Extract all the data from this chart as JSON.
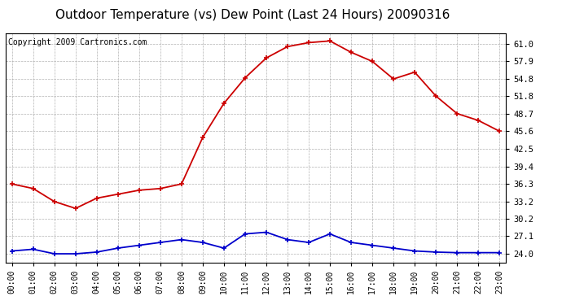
{
  "title": "Outdoor Temperature (vs) Dew Point (Last 24 Hours) 20090316",
  "copyright": "Copyright 2009 Cartronics.com",
  "hours": [
    "00:00",
    "01:00",
    "02:00",
    "03:00",
    "04:00",
    "05:00",
    "06:00",
    "07:00",
    "08:00",
    "09:00",
    "10:00",
    "11:00",
    "12:00",
    "13:00",
    "14:00",
    "15:00",
    "16:00",
    "17:00",
    "18:00",
    "19:00",
    "20:00",
    "21:00",
    "22:00",
    "23:00"
  ],
  "temp": [
    36.3,
    35.5,
    33.2,
    32.0,
    33.8,
    34.5,
    35.2,
    35.5,
    36.3,
    44.5,
    50.5,
    55.0,
    58.5,
    60.5,
    61.2,
    61.5,
    59.5,
    57.9,
    54.8,
    56.0,
    51.8,
    48.7,
    47.5,
    45.6
  ],
  "dew": [
    24.5,
    24.8,
    24.0,
    24.0,
    24.3,
    25.0,
    25.5,
    26.0,
    26.5,
    26.0,
    25.0,
    27.5,
    27.8,
    26.5,
    26.0,
    27.5,
    26.0,
    25.5,
    25.0,
    24.5,
    24.3,
    24.2,
    24.2,
    24.2
  ],
  "temp_color": "#cc0000",
  "dew_color": "#0000cc",
  "bg_color": "#ffffff",
  "grid_color": "#aaaaaa",
  "yticks": [
    24.0,
    27.1,
    30.2,
    33.2,
    36.3,
    39.4,
    42.5,
    45.6,
    48.7,
    51.8,
    54.8,
    57.9,
    61.0
  ],
  "ylim": [
    22.5,
    62.8
  ],
  "xlim": [
    -0.3,
    23.3
  ],
  "marker": "+",
  "markersize": 5,
  "markeredgewidth": 1.2,
  "linewidth": 1.3,
  "title_fontsize": 11,
  "copyright_fontsize": 7,
  "tick_fontsize": 7.5,
  "xtick_fontsize": 7
}
